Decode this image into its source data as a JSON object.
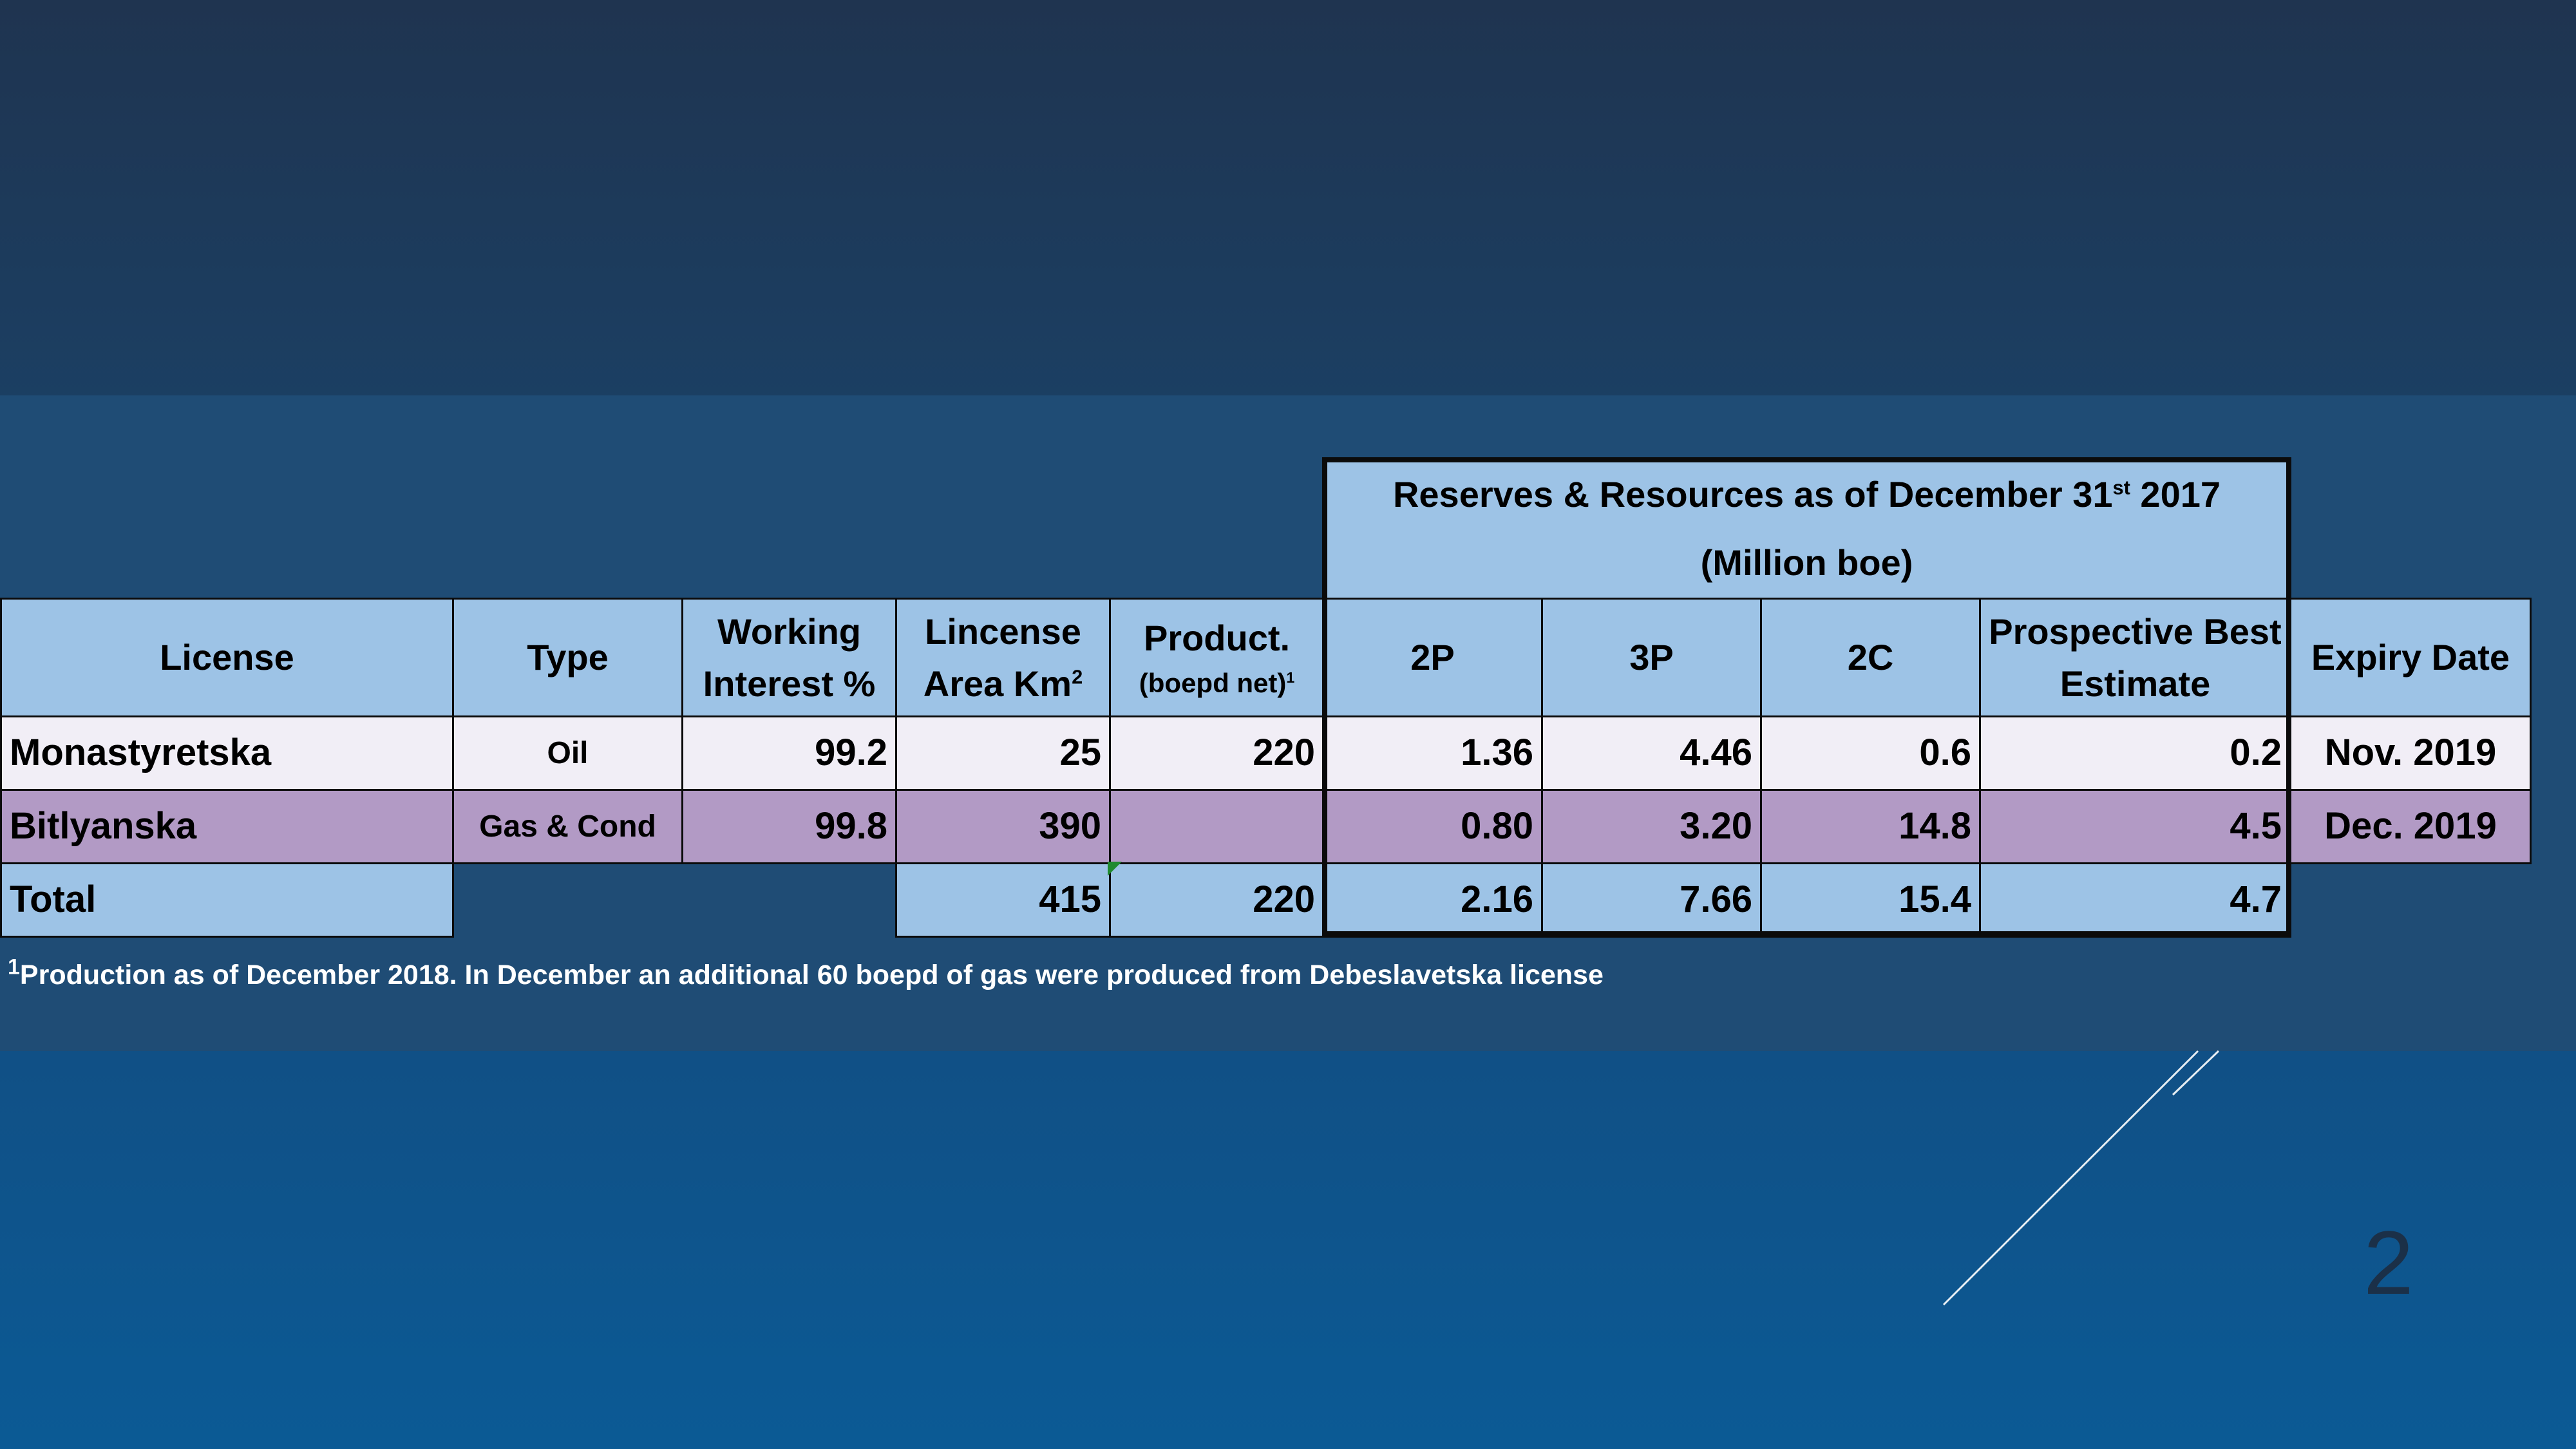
{
  "reserves_header": {
    "line1_pre": "Reserves & Resources as of December 31",
    "line1_sup": "st",
    "line1_post": " 2017",
    "line2": "(Million boe)"
  },
  "columns": {
    "license": "License",
    "type": "Type",
    "working_interest_1": "Working",
    "working_interest_2": "Interest %",
    "area_1": "Lincense",
    "area_2": "Area Km",
    "area_sup": "2",
    "product_1": "Product.",
    "product_2": "(boepd net)",
    "product_sup": "1",
    "p2": "2P",
    "p3": "3P",
    "c2": "2C",
    "prospective_1": "Prospective Best",
    "prospective_2": "Estimate",
    "expiry": "Expiry Date"
  },
  "rows": [
    {
      "license": "Monastyretska",
      "type": "Oil",
      "working_interest": "99.2",
      "area": "25",
      "product": "220",
      "p2": "1.36",
      "p3": "4.46",
      "c2": "0.6",
      "prospective": "0.2",
      "expiry": "Nov. 2019"
    },
    {
      "license": "Bitlyanska",
      "type": "Gas & Cond",
      "working_interest": "99.8",
      "area": "390",
      "product": "",
      "p2": "0.80",
      "p3": "3.20",
      "c2": "14.8",
      "prospective": "4.5",
      "expiry": "Dec. 2019"
    }
  ],
  "total": {
    "label": "Total",
    "area": "415",
    "product": "220",
    "p2": "2.16",
    "p3": "7.66",
    "c2": "15.4",
    "prospective": "4.7"
  },
  "footnote": {
    "sup": "1",
    "text": "Production as of December 2018. In December an additional 60 boepd of gas were produced from Debeslavetska  license"
  },
  "slide_number": "2",
  "colors": {
    "header_fill": "#9dc3e6",
    "row1_fill": "#f1eef6",
    "row2_fill": "#b29ac5",
    "panel": "#1f4c75"
  }
}
